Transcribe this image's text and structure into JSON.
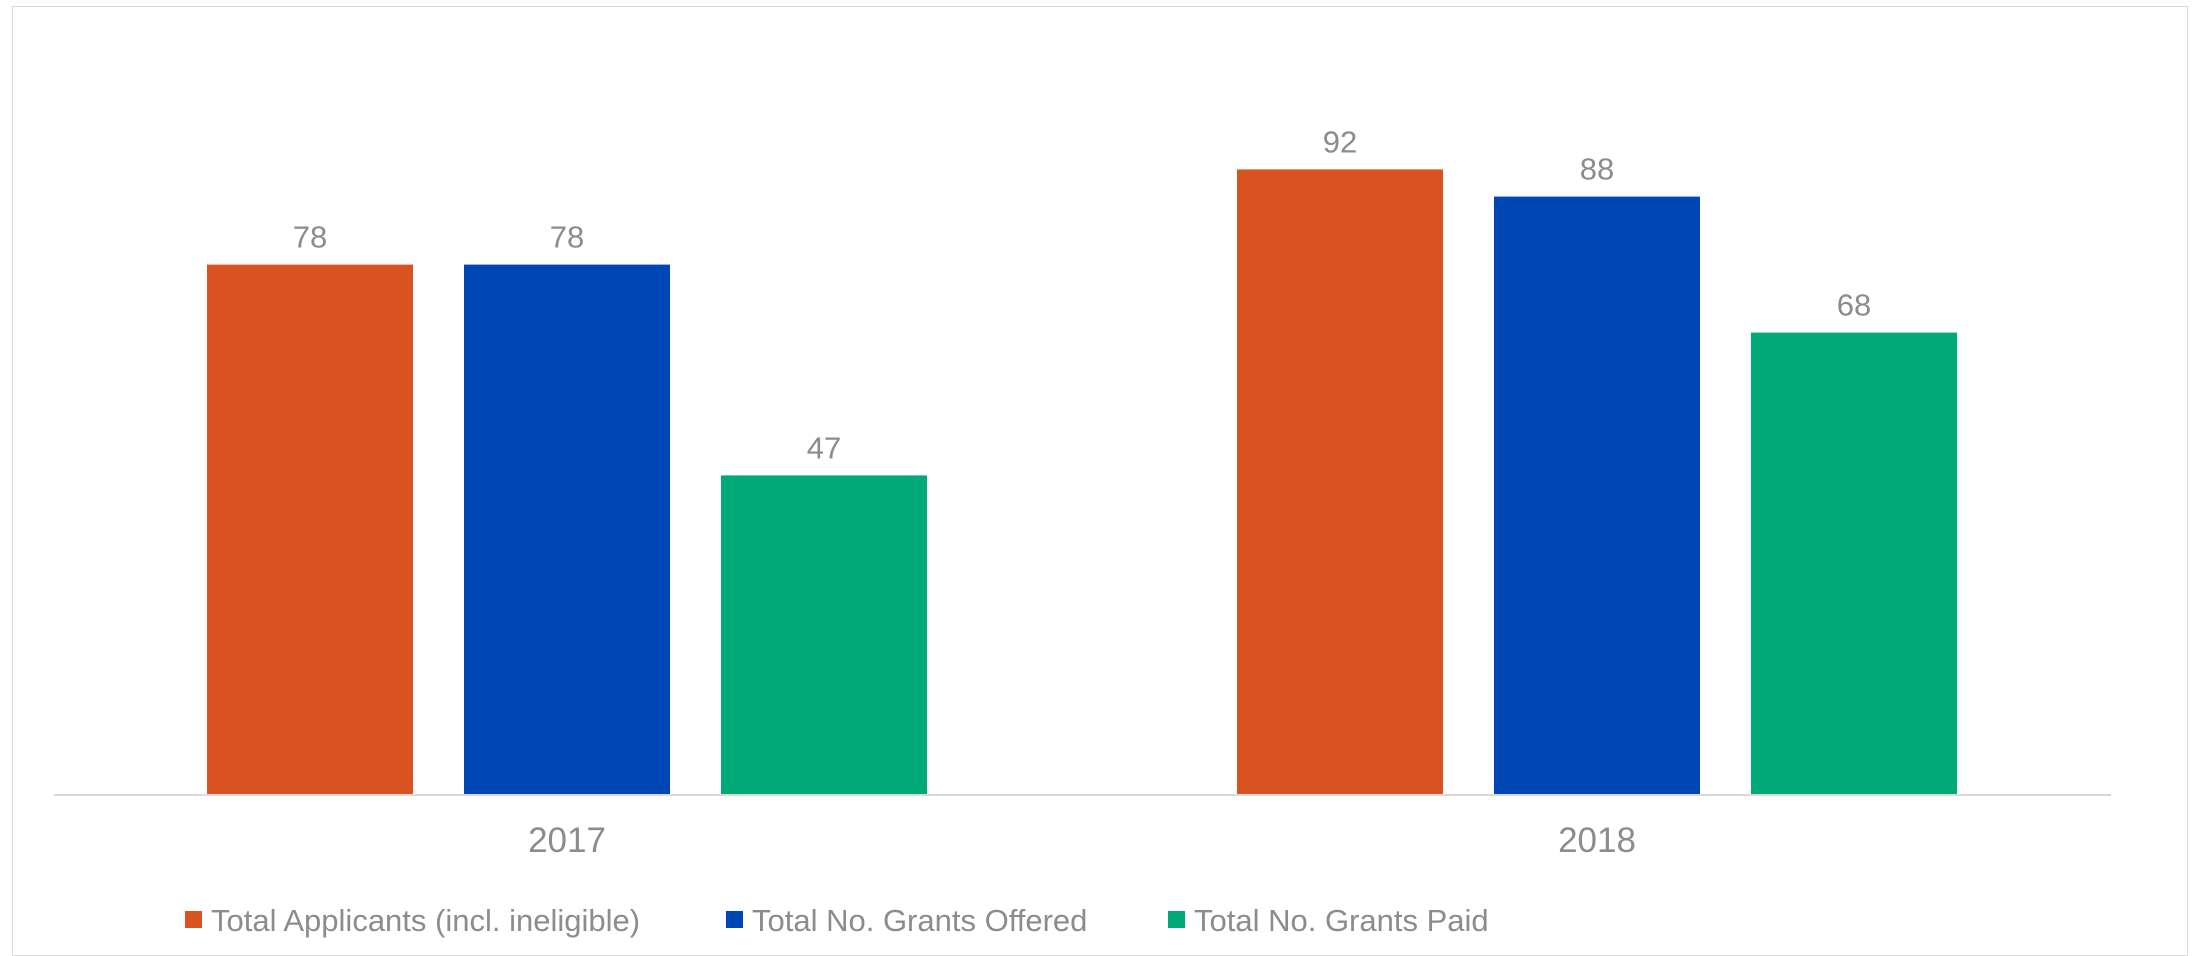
{
  "chart_data": {
    "type": "bar",
    "categories": [
      "2017",
      "2018"
    ],
    "series": [
      {
        "name": "Total Applicants (incl. ineligible)",
        "values": [
          78,
          92
        ],
        "color": "#d95321"
      },
      {
        "name": "Total No. Grants Offered",
        "values": [
          78,
          88
        ],
        "color": "#0047b6"
      },
      {
        "name": "Total No. Grants Paid",
        "values": [
          47,
          68
        ],
        "color": "#00aa78"
      }
    ],
    "title": "",
    "xlabel": "",
    "ylabel": "",
    "ylim": [
      0,
      100
    ],
    "grid": false,
    "legend_position": "bottom"
  }
}
